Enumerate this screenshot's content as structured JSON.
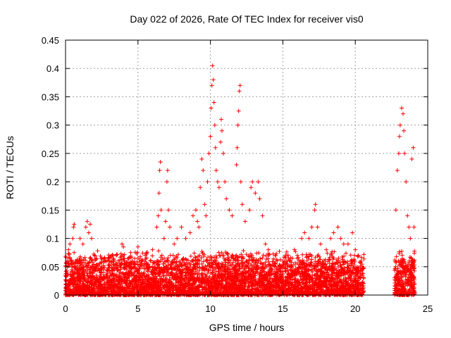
{
  "chart_data": {
    "type": "scatter",
    "title": "Day 022 of 2026, Rate Of TEC Index for receiver vis0",
    "xlabel": "GPS time / hours",
    "ylabel": "ROTI / TECUs",
    "xlim": [
      0,
      25
    ],
    "ylim": [
      0,
      0.45
    ],
    "x_ticks": [
      "0",
      "5",
      "10",
      "15",
      "20",
      "25"
    ],
    "y_ticks": [
      "0",
      "0.05",
      "0.1",
      "0.15",
      "0.2",
      "0.25",
      "0.3",
      "0.35",
      "0.4",
      "0.45"
    ],
    "grid": true,
    "marker": "plus",
    "color": "#ff0000",
    "coverage": [
      [
        0,
        20.6
      ],
      [
        22.7,
        24.1
      ]
    ],
    "baseline_range": [
      0,
      0.05
    ],
    "series": [
      {
        "points": [
          [
            0.2,
            0.08
          ],
          [
            0.3,
            0.09
          ],
          [
            0.5,
            0.1
          ],
          [
            0.55,
            0.12
          ],
          [
            0.6,
            0.125
          ],
          [
            0.7,
            0.06
          ],
          [
            1.0,
            0.1
          ],
          [
            1.2,
            0.09
          ],
          [
            1.4,
            0.12
          ],
          [
            1.5,
            0.13
          ],
          [
            1.6,
            0.11
          ],
          [
            1.7,
            0.125
          ],
          [
            1.8,
            0.1
          ],
          [
            2.0,
            0.07
          ],
          [
            2.5,
            0.05
          ],
          [
            3.0,
            0.06
          ],
          [
            3.5,
            0.07
          ],
          [
            3.9,
            0.09
          ],
          [
            4.0,
            0.085
          ],
          [
            4.5,
            0.075
          ],
          [
            5.0,
            0.085
          ],
          [
            5.5,
            0.07
          ],
          [
            6.0,
            0.08
          ],
          [
            6.3,
            0.12
          ],
          [
            6.4,
            0.14
          ],
          [
            6.45,
            0.18
          ],
          [
            6.5,
            0.22
          ],
          [
            6.55,
            0.235
          ],
          [
            6.6,
            0.15
          ],
          [
            6.8,
            0.1
          ],
          [
            6.9,
            0.13
          ],
          [
            7.0,
            0.2
          ],
          [
            7.05,
            0.22
          ],
          [
            7.1,
            0.15
          ],
          [
            7.2,
            0.12
          ],
          [
            7.5,
            0.09
          ],
          [
            7.7,
            0.1
          ],
          [
            8.0,
            0.12
          ],
          [
            8.3,
            0.1
          ],
          [
            8.6,
            0.11
          ],
          [
            8.8,
            0.14
          ],
          [
            9.0,
            0.15
          ],
          [
            9.1,
            0.13
          ],
          [
            9.2,
            0.12
          ],
          [
            9.3,
            0.19
          ],
          [
            9.4,
            0.24
          ],
          [
            9.5,
            0.22
          ],
          [
            9.6,
            0.16
          ],
          [
            9.7,
            0.14
          ],
          [
            9.8,
            0.2
          ],
          [
            9.9,
            0.25
          ],
          [
            10.0,
            0.28
          ],
          [
            10.05,
            0.33
          ],
          [
            10.1,
            0.37
          ],
          [
            10.15,
            0.405
          ],
          [
            10.2,
            0.38
          ],
          [
            10.25,
            0.34
          ],
          [
            10.3,
            0.3
          ],
          [
            10.35,
            0.26
          ],
          [
            10.4,
            0.22
          ],
          [
            10.5,
            0.2
          ],
          [
            10.6,
            0.19
          ],
          [
            10.7,
            0.27
          ],
          [
            10.75,
            0.31
          ],
          [
            10.8,
            0.29
          ],
          [
            10.9,
            0.25
          ],
          [
            11.0,
            0.2
          ],
          [
            11.1,
            0.17
          ],
          [
            11.3,
            0.15
          ],
          [
            11.5,
            0.14
          ],
          [
            11.8,
            0.23
          ],
          [
            11.85,
            0.26
          ],
          [
            11.9,
            0.3
          ],
          [
            11.95,
            0.325
          ],
          [
            12.0,
            0.36
          ],
          [
            12.05,
            0.37
          ],
          [
            12.1,
            0.2
          ],
          [
            12.2,
            0.16
          ],
          [
            12.4,
            0.13
          ],
          [
            12.7,
            0.15
          ],
          [
            12.8,
            0.19
          ],
          [
            12.9,
            0.2
          ],
          [
            13.1,
            0.18
          ],
          [
            13.3,
            0.2
          ],
          [
            13.4,
            0.17
          ],
          [
            13.6,
            0.14
          ],
          [
            13.8,
            0.09
          ],
          [
            14.0,
            0.08
          ],
          [
            14.5,
            0.07
          ],
          [
            15.0,
            0.06
          ],
          [
            15.5,
            0.06
          ],
          [
            15.8,
            0.08
          ],
          [
            16.0,
            0.07
          ],
          [
            16.3,
            0.1
          ],
          [
            16.5,
            0.11
          ],
          [
            16.8,
            0.1
          ],
          [
            17.0,
            0.12
          ],
          [
            17.2,
            0.15
          ],
          [
            17.25,
            0.16
          ],
          [
            17.4,
            0.12
          ],
          [
            17.6,
            0.09
          ],
          [
            18.0,
            0.08
          ],
          [
            18.3,
            0.1
          ],
          [
            18.5,
            0.11
          ],
          [
            18.8,
            0.12
          ],
          [
            19.0,
            0.1
          ],
          [
            19.2,
            0.09
          ],
          [
            19.5,
            0.09
          ],
          [
            19.8,
            0.11
          ],
          [
            20.0,
            0.08
          ],
          [
            20.2,
            0.07
          ],
          [
            20.4,
            0.06
          ],
          [
            22.8,
            0.15
          ],
          [
            22.9,
            0.22
          ],
          [
            23.0,
            0.25
          ],
          [
            23.05,
            0.28
          ],
          [
            23.1,
            0.3
          ],
          [
            23.2,
            0.33
          ],
          [
            23.3,
            0.32
          ],
          [
            23.35,
            0.29
          ],
          [
            23.4,
            0.25
          ],
          [
            23.5,
            0.2
          ],
          [
            23.6,
            0.14
          ],
          [
            23.7,
            0.12
          ],
          [
            23.8,
            0.1
          ],
          [
            23.9,
            0.24
          ],
          [
            24.0,
            0.26
          ],
          [
            24.05,
            0.12
          ]
        ]
      }
    ]
  }
}
